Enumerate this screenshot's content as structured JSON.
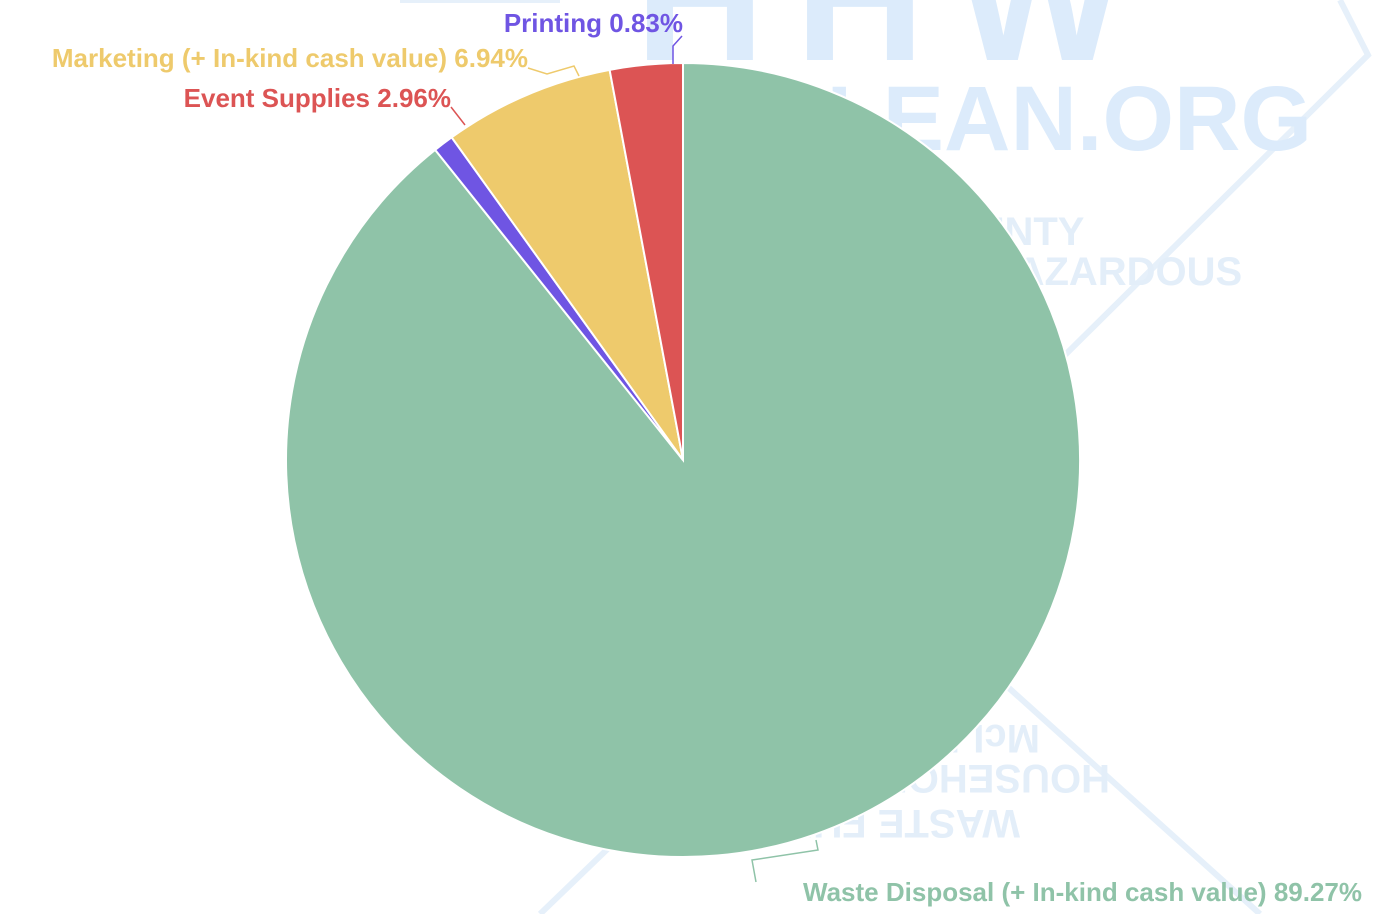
{
  "chart_data": {
    "type": "pie",
    "title": "",
    "slices": [
      {
        "name": "Waste Disposal (+ In-kind cash value)",
        "value": 89.27,
        "pct_label": "89.27%",
        "color": "#8fc3a8"
      },
      {
        "name": "Printing",
        "value": 0.83,
        "pct_label": "0.83%",
        "color": "#6f55e3"
      },
      {
        "name": "Marketing (+ In-kind cash value)",
        "value": 6.94,
        "pct_label": "6.94%",
        "color": "#eeca6c"
      },
      {
        "name": "Event Supplies",
        "value": 2.96,
        "pct_label": "2.96%",
        "color": "#dc5454"
      }
    ]
  },
  "watermark": {
    "line1": "HHW",
    "line2": "CLEAN.ORG",
    "line3": "McLEAN COUNTY",
    "line4": "HOUSEHOLD HAZARDOUS",
    "line5": "WASTE FUND",
    "color": "#dcebfb"
  }
}
